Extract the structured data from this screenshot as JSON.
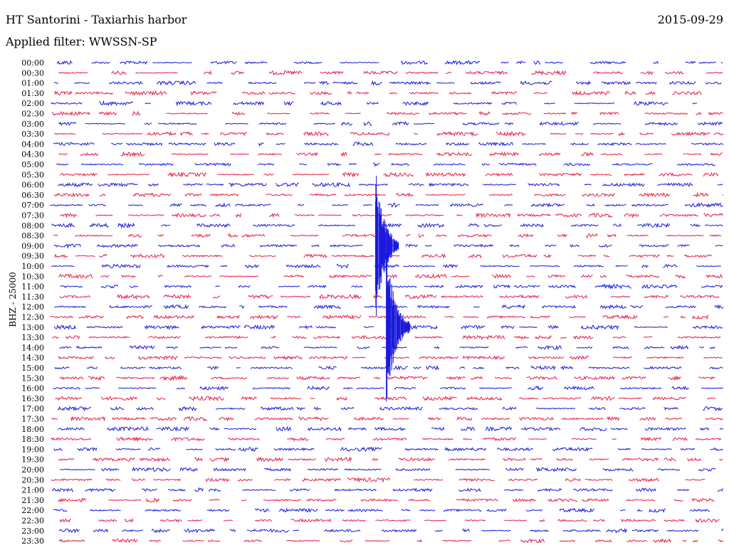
{
  "header": {
    "title": "HT Santorini - Taxiarhis harbor",
    "date": "2015-09-29",
    "filter": "Applied filter: WWSSN-SP"
  },
  "chart_data": {
    "type": "line",
    "title": "HT Santorini - Taxiarhis harbor",
    "ylabel": "BHZ - 25000",
    "xlabel": "",
    "row_labels": [
      "00:00",
      "00:30",
      "01:00",
      "01:30",
      "02:00",
      "02:30",
      "03:00",
      "03:30",
      "04:00",
      "04:30",
      "05:00",
      "05:30",
      "06:00",
      "06:30",
      "07:00",
      "07:30",
      "08:00",
      "08:30",
      "09:00",
      "09:30",
      "10:00",
      "10:30",
      "11:00",
      "11:30",
      "12:00",
      "12:30",
      "13:00",
      "13:30",
      "14:00",
      "14:30",
      "15:00",
      "15:30",
      "16:00",
      "16:30",
      "17:00",
      "17:30",
      "18:00",
      "18:30",
      "19:00",
      "19:30",
      "20:00",
      "20:30",
      "21:00",
      "21:30",
      "22:00",
      "22:30",
      "23:00",
      "23:30"
    ],
    "colors": {
      "even": "#1a1adc",
      "odd": "#e8204a"
    },
    "events": [
      {
        "row": "09:00",
        "offset_min": 14.5,
        "amplitude": "large"
      },
      {
        "row": "13:00",
        "offset_min": 15.0,
        "amplitude": "large"
      }
    ]
  }
}
